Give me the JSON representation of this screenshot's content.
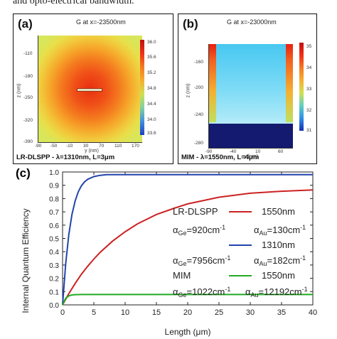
{
  "caption": "and opto-electrical bandwidth.",
  "panel_a": {
    "label": "(a)",
    "title": "G at x=-23500nm",
    "ylabel": "z (nm)",
    "xlabel": "y (nm)",
    "yticks": [
      "-110",
      "-180",
      "-250",
      "-320",
      "-390"
    ],
    "xticks": [
      "-90",
      "-50",
      "-10",
      "30",
      "70",
      "110",
      "170"
    ],
    "colorbar": [
      "36.0",
      "35.6",
      "35.2",
      "34.8",
      "34.4",
      "34.0",
      "33.6"
    ],
    "footer": "LR-DLSPP - λ=1310nm, L=3μm"
  },
  "panel_b": {
    "label": "(b)",
    "title": "G at x=-23000nm",
    "ylabel": "z (nm)",
    "xlabel": "y (nm)",
    "yticks": [
      "-160",
      "-200",
      "-240",
      "-280"
    ],
    "xticks": [
      "-90",
      "-40",
      "10",
      "60"
    ],
    "colorbar": [
      "35",
      "34",
      "33",
      "32",
      "31"
    ],
    "footer": "MIM - λ=1550nm, L=4μm"
  },
  "colors": {
    "lr1550": "#cc2222",
    "lr1310": "#2244aa",
    "mim1550": "#22aa22"
  },
  "chart_data": {
    "label": "(c)",
    "type": "line",
    "xlabel": "Length (μm)",
    "ylabel": "Internal Quantum Efficiency",
    "xlim": [
      0,
      40
    ],
    "ylim": [
      0,
      1.0
    ],
    "xticks": [
      "0",
      "5",
      "10",
      "15",
      "20",
      "25",
      "30",
      "35",
      "40"
    ],
    "yticks": [
      "0.0",
      "0.1",
      "0.2",
      "0.3",
      "0.4",
      "0.5",
      "0.6",
      "0.7",
      "0.8",
      "0.9",
      "1.0"
    ],
    "grid": false,
    "series": [
      {
        "color": "#cc2222",
        "x": [
          0,
          1,
          2,
          3,
          4,
          5,
          6,
          8,
          10,
          12,
          15,
          18,
          20,
          25,
          30,
          35,
          40
        ],
        "y": [
          0,
          0.085,
          0.16,
          0.23,
          0.29,
          0.345,
          0.395,
          0.48,
          0.55,
          0.61,
          0.68,
          0.73,
          0.76,
          0.81,
          0.84,
          0.855,
          0.865
        ]
      },
      {
        "color": "#2244aa",
        "x": [
          0,
          0.5,
          1,
          1.5,
          2,
          2.5,
          3,
          3.5,
          4,
          5,
          6,
          7,
          8,
          10,
          15,
          20,
          30,
          40
        ],
        "y": [
          0,
          0.31,
          0.53,
          0.68,
          0.78,
          0.85,
          0.895,
          0.925,
          0.945,
          0.965,
          0.975,
          0.98,
          0.98,
          0.98,
          0.98,
          0.98,
          0.98,
          0.98
        ]
      },
      {
        "color": "#22aa22",
        "x": [
          0,
          0.5,
          1,
          1.5,
          2,
          3,
          4,
          5,
          10,
          20,
          30,
          40
        ],
        "y": [
          0,
          0.05,
          0.068,
          0.075,
          0.077,
          0.078,
          0.078,
          0.078,
          0.078,
          0.078,
          0.078,
          0.078
        ]
      }
    ],
    "legend": {
      "lr_name": "LR-DLSPP",
      "lr1550_label": "1550nm",
      "lr1550_alpha_ge": "α",
      "lr1550_params_ge": "Ge",
      "lr1550_params_ge_val": "=920cm",
      "lr1550_params_au": "Au",
      "lr1550_params_au_val": "=130cm",
      "lr1310_label": "1310nm",
      "lr1310_params_ge_val": "=7956cm",
      "lr1310_params_au_val": "=182cm",
      "mim_name": "MIM",
      "mim1550_label": "1550nm",
      "mim1550_params_ge_val": "=1022cm",
      "mim1550_params_au_val": "=12192cm",
      "exponent": "-1"
    }
  }
}
